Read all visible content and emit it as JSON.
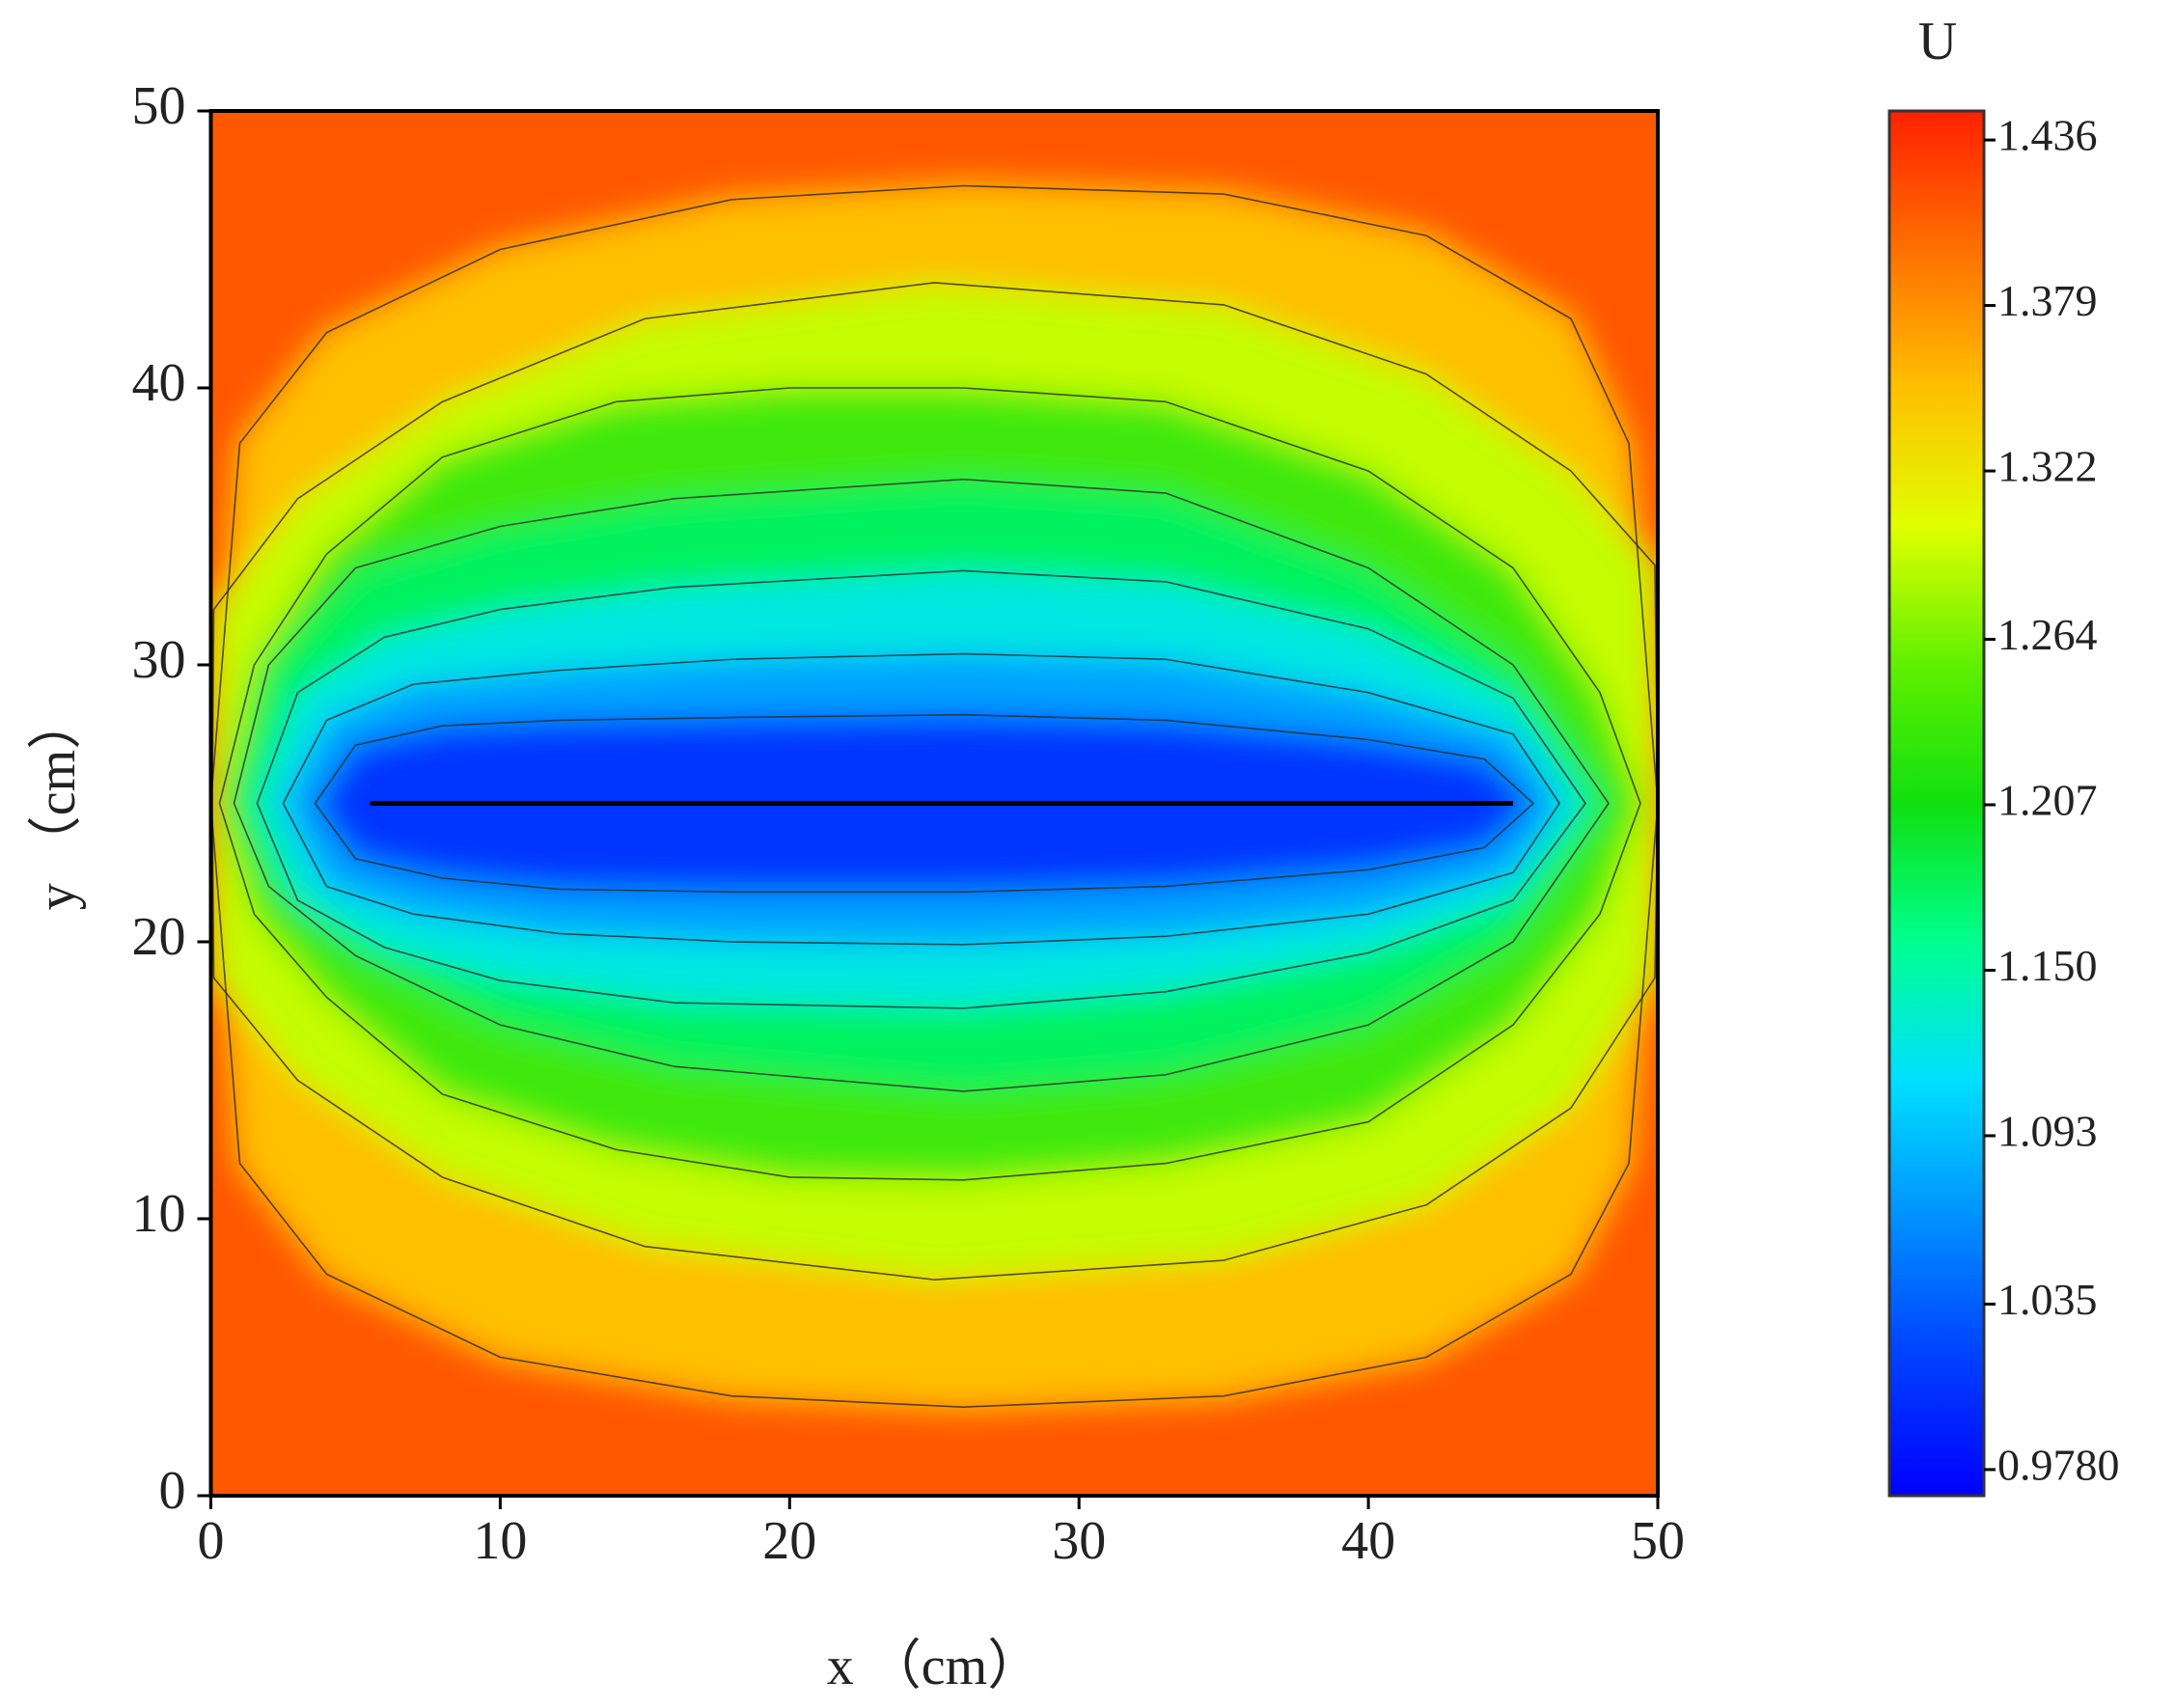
{
  "chart_data": {
    "type": "contour",
    "xlabel": "x （cm）",
    "ylabel": "y （cm）",
    "xlim": [
      0,
      50
    ],
    "ylim": [
      0,
      50
    ],
    "xticks": [
      0,
      10,
      20,
      30,
      40,
      50
    ],
    "yticks": [
      0,
      10,
      20,
      30,
      40,
      50
    ],
    "colorbar": {
      "title": "U",
      "lim": [
        0.969,
        1.446
      ],
      "ticks": [
        {
          "value": 0.978,
          "label": "0.9780"
        },
        1.035,
        1.093,
        {
          "value": 1.15,
          "label": "1.150"
        },
        1.207,
        1.264,
        1.322,
        1.379,
        1.436
      ],
      "colors": [
        "#0000ff",
        "#0040ff",
        "#0090ff",
        "#00e0ff",
        "#00ff90",
        "#10e010",
        "#60f000",
        "#e0ff00",
        "#ffc000",
        "#ff7000",
        "#ff2000"
      ]
    },
    "contours": [
      {
        "level": 1.05,
        "x": [
          3.6,
          5,
          8,
          12,
          18,
          26,
          33,
          40,
          44,
          45.7,
          44,
          40,
          33,
          26,
          18,
          12,
          8,
          5
        ],
        "y": [
          25,
          27.1,
          27.8,
          28,
          28.1,
          28.2,
          28,
          27.3,
          26.6,
          25,
          23.4,
          22.6,
          22,
          21.8,
          21.8,
          21.9,
          22.3,
          23
        ]
      },
      {
        "level": 1.1,
        "x": [
          2.5,
          4,
          7,
          12,
          18,
          26,
          33,
          40,
          45,
          46.6,
          45,
          40,
          33,
          26,
          18,
          12,
          7,
          4
        ],
        "y": [
          25,
          28,
          29.3,
          29.8,
          30.2,
          30.4,
          30.2,
          29,
          27.5,
          25,
          22.5,
          21,
          20.2,
          19.9,
          20,
          20.3,
          21,
          22
        ]
      },
      {
        "level": 1.15,
        "x": [
          1.6,
          3,
          6,
          10,
          16,
          26,
          33,
          40,
          45,
          47.5,
          45,
          40,
          33,
          26,
          16,
          10,
          6,
          3
        ],
        "y": [
          25,
          29,
          31,
          32,
          32.8,
          33.4,
          33,
          31.3,
          28.8,
          25,
          21.5,
          19.6,
          18.2,
          17.6,
          17.8,
          18.6,
          19.8,
          21.5
        ]
      },
      {
        "level": 1.207,
        "x": [
          0.8,
          2,
          5,
          10,
          16,
          26,
          33,
          40,
          45,
          48.3,
          45,
          40,
          33,
          26,
          16,
          10,
          5,
          2
        ],
        "y": [
          25,
          30,
          33.5,
          35,
          36,
          36.7,
          36.2,
          33.5,
          30,
          25,
          20,
          17,
          15.2,
          14.6,
          15.5,
          17,
          19.5,
          22
        ]
      },
      {
        "level": 1.264,
        "x": [
          0.3,
          1.5,
          4,
          8,
          14,
          20,
          26,
          33,
          40,
          45,
          48,
          49.4,
          48,
          45,
          40,
          33,
          26,
          20,
          14,
          8,
          4,
          1.5
        ],
        "y": [
          25,
          30,
          34,
          37.5,
          39.5,
          40,
          40,
          39.5,
          37,
          33.5,
          29,
          25,
          21,
          17,
          13.5,
          12,
          11.4,
          11.5,
          12.5,
          14.5,
          18,
          21
        ]
      },
      {
        "level": 1.322,
        "x": [
          0.1,
          3,
          8,
          15,
          25,
          35,
          42,
          47,
          49.9,
          50,
          49.9,
          47,
          42,
          35,
          25,
          15,
          8,
          3,
          0.1,
          0.05
        ],
        "y": [
          32,
          36,
          39.5,
          42.5,
          43.8,
          43,
          40.5,
          37,
          33.6,
          25,
          18.7,
          14,
          10.5,
          8.5,
          7.8,
          9,
          11.5,
          15,
          18.7,
          25
        ]
      },
      {
        "level": 1.379,
        "x": [
          0,
          1,
          4,
          10,
          18,
          26,
          35,
          42,
          47,
          49,
          50,
          49,
          47,
          42,
          35,
          26,
          18,
          10,
          4,
          1
        ],
        "y": [
          25,
          38,
          42,
          45,
          46.8,
          47.3,
          47,
          45.5,
          42.5,
          38,
          25,
          12,
          8,
          5,
          3.6,
          3.2,
          3.6,
          5,
          8,
          12
        ]
      }
    ],
    "crack": {
      "x": [
        5.5,
        45
      ],
      "y": [
        25,
        25
      ]
    }
  }
}
